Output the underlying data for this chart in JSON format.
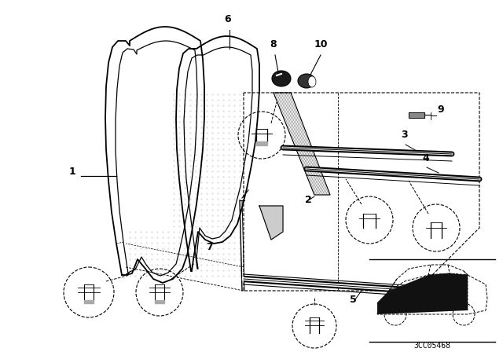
{
  "bg_color": "#ffffff",
  "line_color": "#000000",
  "fig_width": 6.4,
  "fig_height": 4.48,
  "dpi": 100,
  "catalog_code": "3CC05468"
}
